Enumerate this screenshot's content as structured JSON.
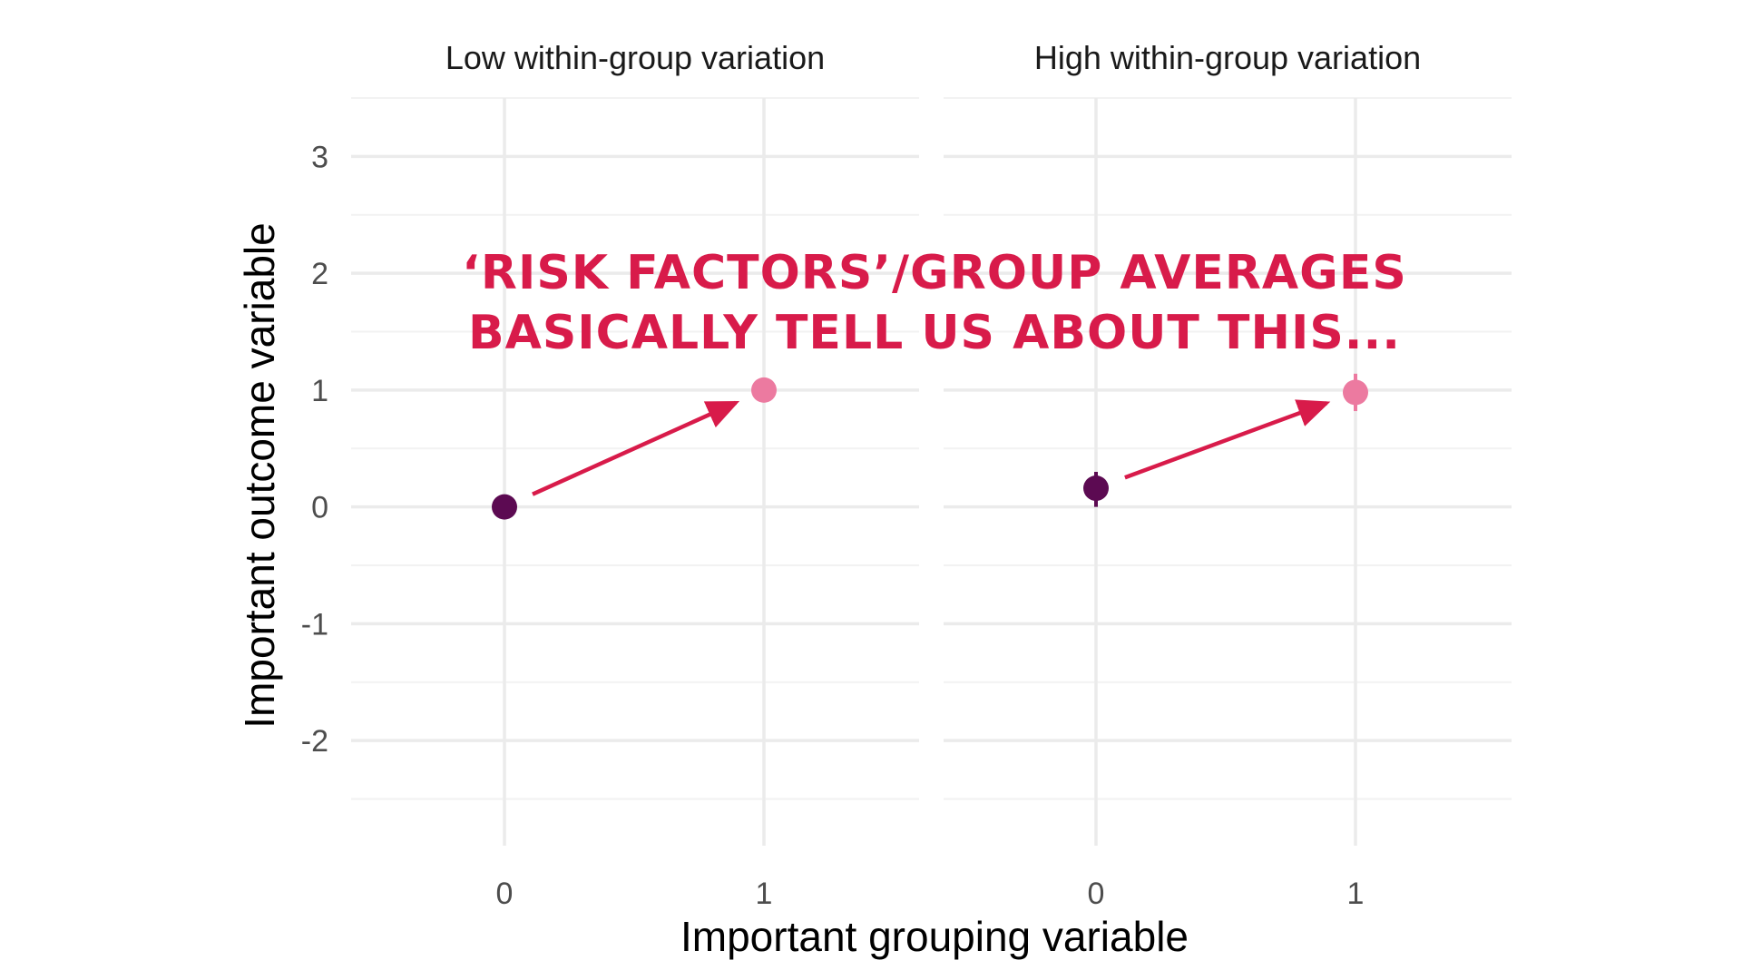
{
  "chart_data": {
    "type": "scatter",
    "xlabel": "Important grouping variable",
    "ylabel": "Important outcome variable",
    "x_categories": [
      "0",
      "1"
    ],
    "ylim": [
      -2.9,
      3.5
    ],
    "y_ticks": [
      -2,
      -1,
      0,
      1,
      2,
      3
    ],
    "y_tick_labels": [
      "-2",
      "-1",
      "0",
      "1",
      "2",
      "3"
    ],
    "grid": true,
    "legend": "none",
    "annotation": {
      "lines": [
        "‘RISK FACTORS’/GROUP AVERAGES",
        "BASICALLY TELL US ABOUT THIS..."
      ],
      "color": "#d81b4a"
    },
    "arrow_color": "#d81b4a",
    "colors": {
      "group_0": "#5c0a52",
      "group_1": "#ec7aa0",
      "grid_major": "#ebebeb",
      "grid_minor": "#f2f2f2"
    },
    "panels": [
      {
        "title": "Low within-group variation",
        "points": [
          {
            "x": "0",
            "y": 0.0,
            "ymin": 0.0,
            "ymax": 0.0
          },
          {
            "x": "1",
            "y": 1.0,
            "ymin": 1.0,
            "ymax": 1.0
          }
        ]
      },
      {
        "title": "High within-group variation",
        "points": [
          {
            "x": "0",
            "y": 0.16,
            "ymin": 0.0,
            "ymax": 0.3
          },
          {
            "x": "1",
            "y": 0.98,
            "ymin": 0.82,
            "ymax": 1.14
          }
        ]
      }
    ]
  }
}
